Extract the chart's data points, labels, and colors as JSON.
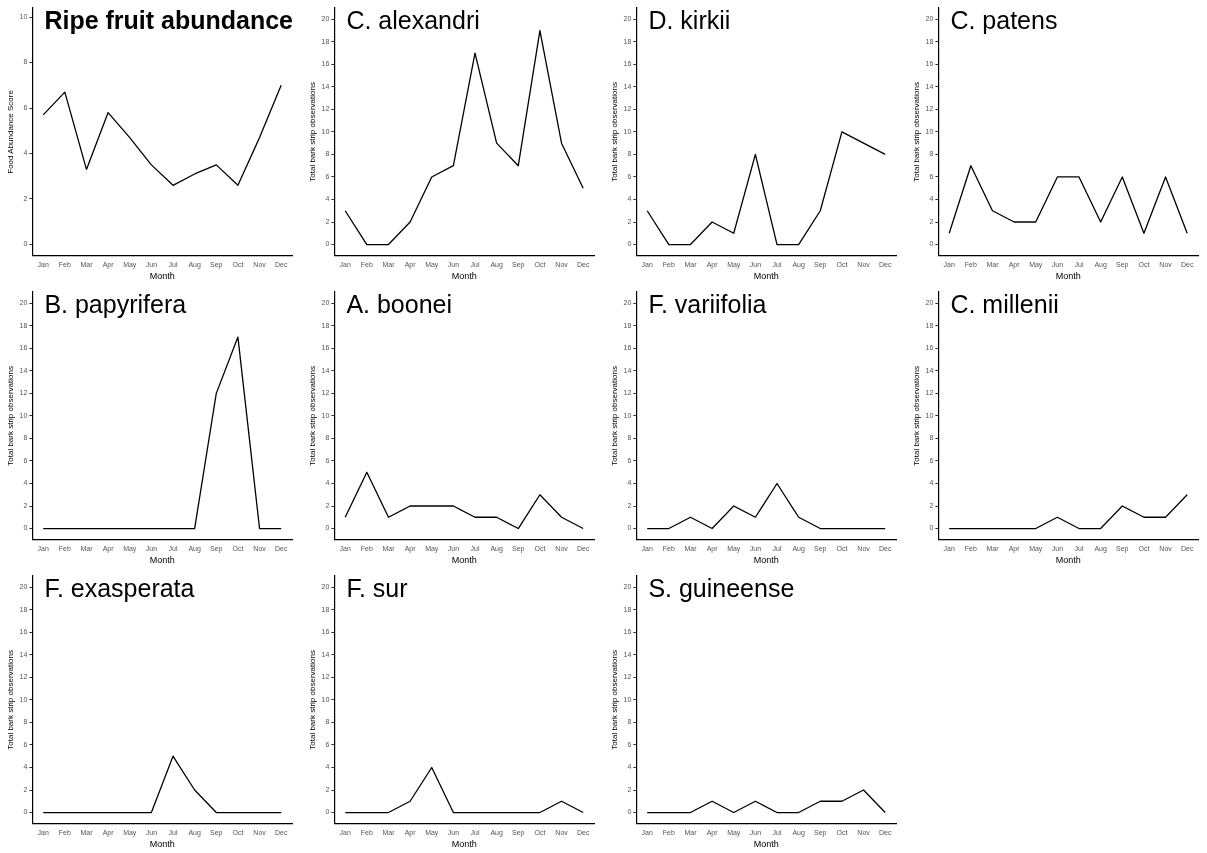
{
  "chart_data": [
    {
      "type": "line",
      "title": "Ripe fruit abundance",
      "xlabel": "Month",
      "ylabel": "Food Abundance Score",
      "categories": [
        "Jan",
        "Feb",
        "Mar",
        "Apr",
        "May",
        "Jun",
        "Jul",
        "Aug",
        "Sep",
        "Oct",
        "Nov",
        "Dec"
      ],
      "values": [
        5.7,
        6.7,
        3.3,
        5.8,
        4.7,
        3.5,
        2.6,
        3.1,
        3.5,
        2.6,
        4.7,
        7.0
      ],
      "color": "#000000",
      "ylim": [
        -0.5,
        10.4
      ],
      "yticks": [
        0,
        2,
        4,
        6,
        8,
        10
      ],
      "grid": false,
      "legend": false
    },
    {
      "type": "line",
      "title": "C. alexandri",
      "xlabel": "Month",
      "ylabel": "Total bark strip observations",
      "categories": [
        "Jan",
        "Feb",
        "Mar",
        "Apr",
        "May",
        "Jun",
        "Jul",
        "Aug",
        "Sep",
        "Oct",
        "Nov",
        "Dec"
      ],
      "values": [
        3,
        0,
        0,
        2,
        6,
        7,
        17,
        9,
        7,
        19,
        9,
        5
      ],
      "color": "#000000",
      "ylim": [
        -1,
        21
      ],
      "yticks": [
        0,
        2,
        4,
        6,
        8,
        10,
        12,
        14,
        16,
        18,
        20
      ],
      "grid": false,
      "legend": false
    },
    {
      "type": "line",
      "title": "D. kirkii",
      "xlabel": "Month",
      "ylabel": "Total bark strip observations",
      "categories": [
        "Jan",
        "Feb",
        "Mar",
        "Apr",
        "May",
        "Jun",
        "Jul",
        "Aug",
        "Sep",
        "Oct",
        "Nov",
        "Dec"
      ],
      "values": [
        3,
        0,
        0,
        2,
        1,
        8,
        0,
        0,
        3,
        10,
        9,
        8
      ],
      "color": "#000000",
      "ylim": [
        -1,
        21
      ],
      "yticks": [
        0,
        2,
        4,
        6,
        8,
        10,
        12,
        14,
        16,
        18,
        20
      ],
      "grid": false,
      "legend": false
    },
    {
      "type": "line",
      "title": "C. patens",
      "xlabel": "Month",
      "ylabel": "Total bark strip observations",
      "categories": [
        "Jan",
        "Feb",
        "Mar",
        "Apr",
        "May",
        "Jun",
        "Jul",
        "Aug",
        "Sep",
        "Oct",
        "Nov",
        "Dec"
      ],
      "values": [
        1,
        7,
        3,
        2,
        2,
        6,
        6,
        2,
        6,
        1,
        6,
        1
      ],
      "color": "#000000",
      "ylim": [
        -1,
        21
      ],
      "yticks": [
        0,
        2,
        4,
        6,
        8,
        10,
        12,
        14,
        16,
        18,
        20
      ],
      "grid": false,
      "legend": false
    },
    {
      "type": "line",
      "title": "B. papyrifera",
      "xlabel": "Month",
      "ylabel": "Total bark strip observations",
      "categories": [
        "Jan",
        "Feb",
        "Mar",
        "Apr",
        "May",
        "Jun",
        "Jul",
        "Aug",
        "Sep",
        "Oct",
        "Nov",
        "Dec"
      ],
      "values": [
        0,
        0,
        0,
        0,
        0,
        0,
        0,
        0,
        12,
        17,
        0,
        0
      ],
      "color": "#000000",
      "ylim": [
        -1,
        21
      ],
      "yticks": [
        0,
        2,
        4,
        6,
        8,
        10,
        12,
        14,
        16,
        18,
        20
      ],
      "grid": false,
      "legend": false
    },
    {
      "type": "line",
      "title": "A. boonei",
      "xlabel": "Month",
      "ylabel": "Total bark strip observations",
      "categories": [
        "Jan",
        "Feb",
        "Mar",
        "Apr",
        "May",
        "Jun",
        "Jul",
        "Aug",
        "Sep",
        "Oct",
        "Nov",
        "Dec"
      ],
      "values": [
        1,
        5,
        1,
        2,
        2,
        2,
        1,
        1,
        0,
        3,
        1,
        0
      ],
      "color": "#000000",
      "ylim": [
        -1,
        21
      ],
      "yticks": [
        0,
        2,
        4,
        6,
        8,
        10,
        12,
        14,
        16,
        18,
        20
      ],
      "grid": false,
      "legend": false
    },
    {
      "type": "line",
      "title": "F. variifolia",
      "xlabel": "Month",
      "ylabel": "Total bark strip observations",
      "categories": [
        "Jan",
        "Feb",
        "Mar",
        "Apr",
        "May",
        "Jun",
        "Jul",
        "Aug",
        "Sep",
        "Oct",
        "Nov",
        "Dec"
      ],
      "values": [
        0,
        0,
        1,
        0,
        2,
        1,
        4,
        1,
        0,
        0,
        0,
        0
      ],
      "color": "#000000",
      "ylim": [
        -1,
        21
      ],
      "yticks": [
        0,
        2,
        4,
        6,
        8,
        10,
        12,
        14,
        16,
        18,
        20
      ],
      "grid": false,
      "legend": false
    },
    {
      "type": "line",
      "title": "C. millenii",
      "xlabel": "Month",
      "ylabel": "Total bark strip observations",
      "categories": [
        "Jan",
        "Feb",
        "Mar",
        "Apr",
        "May",
        "Jun",
        "Jul",
        "Aug",
        "Sep",
        "Oct",
        "Nov",
        "Dec"
      ],
      "values": [
        0,
        0,
        0,
        0,
        0,
        1,
        0,
        0,
        2,
        1,
        1,
        3
      ],
      "color": "#000000",
      "ylim": [
        -1,
        21
      ],
      "yticks": [
        0,
        2,
        4,
        6,
        8,
        10,
        12,
        14,
        16,
        18,
        20
      ],
      "grid": false,
      "legend": false
    },
    {
      "type": "line",
      "title": "F. exasperata",
      "xlabel": "Month",
      "ylabel": "Total bark strip observations",
      "categories": [
        "Jan",
        "Feb",
        "Mar",
        "Apr",
        "May",
        "Jun",
        "Jul",
        "Aug",
        "Sep",
        "Oct",
        "Nov",
        "Dec"
      ],
      "values": [
        0,
        0,
        0,
        0,
        0,
        0,
        5,
        2,
        0,
        0,
        0,
        0
      ],
      "color": "#000000",
      "ylim": [
        -1,
        21
      ],
      "yticks": [
        0,
        2,
        4,
        6,
        8,
        10,
        12,
        14,
        16,
        18,
        20
      ],
      "grid": false,
      "legend": false
    },
    {
      "type": "line",
      "title": "F. sur",
      "xlabel": "Month",
      "ylabel": "Total bark strip observations",
      "categories": [
        "Jan",
        "Feb",
        "Mar",
        "Apr",
        "May",
        "Jun",
        "Jul",
        "Aug",
        "Sep",
        "Oct",
        "Nov",
        "Dec"
      ],
      "values": [
        0,
        0,
        0,
        1,
        4,
        0,
        0,
        0,
        0,
        0,
        1,
        0
      ],
      "color": "#000000",
      "ylim": [
        -1,
        21
      ],
      "yticks": [
        0,
        2,
        4,
        6,
        8,
        10,
        12,
        14,
        16,
        18,
        20
      ],
      "grid": false,
      "legend": false
    },
    {
      "type": "line",
      "title": "S. guineense",
      "xlabel": "Month",
      "ylabel": "Total bark strip observations",
      "categories": [
        "Jan",
        "Feb",
        "Mar",
        "Apr",
        "May",
        "Jun",
        "Jul",
        "Aug",
        "Sep",
        "Oct",
        "Nov",
        "Dec"
      ],
      "values": [
        0,
        0,
        0,
        1,
        0,
        1,
        0,
        0,
        1,
        1,
        2,
        0
      ],
      "color": "#000000",
      "ylim": [
        -1,
        21
      ],
      "yticks": [
        0,
        2,
        4,
        6,
        8,
        10,
        12,
        14,
        16,
        18,
        20
      ],
      "grid": false,
      "legend": false
    }
  ]
}
